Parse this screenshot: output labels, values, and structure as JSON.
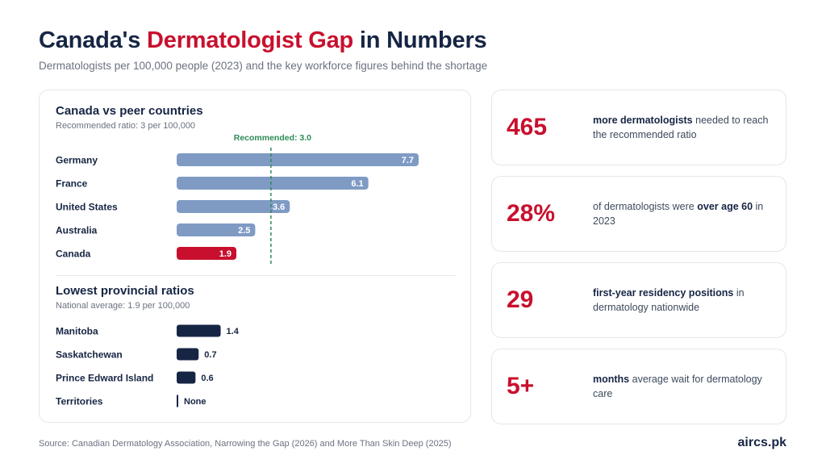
{
  "header": {
    "title_pre": "Canada's ",
    "title_accent": "Dermatologist Gap",
    "title_post": " in Numbers",
    "subtitle": "Dermatologists per 100,000 people (2023) and the key workforce figures behind the shortage"
  },
  "colors": {
    "accent": "#c8102e",
    "navy": "#162544",
    "peer_bar": "#7f9bc4",
    "recommended_line": "#2e8b57"
  },
  "chart_data": [
    {
      "type": "bar",
      "orientation": "horizontal",
      "title": "Canada vs peer countries",
      "subtitle": "Recommended ratio: 3 per 100,000",
      "categories": [
        "Germany",
        "France",
        "United States",
        "Australia",
        "Canada"
      ],
      "values": [
        7.7,
        6.1,
        3.6,
        2.5,
        1.9
      ],
      "labels": [
        "7.7",
        "6.1",
        "3.6",
        "2.5",
        "1.9"
      ],
      "highlight": "Canada",
      "reference_line": {
        "value": 3.0,
        "label": "Recommended: 3.0"
      },
      "xlim": [
        0,
        7.7
      ]
    },
    {
      "type": "bar",
      "orientation": "horizontal",
      "title": "Lowest provincial ratios",
      "subtitle": "National average: 1.9 per 100,000",
      "categories": [
        "Manitoba",
        "Saskatchewan",
        "Prince Edward Island",
        "Territories"
      ],
      "values": [
        1.4,
        0.7,
        0.6,
        0
      ],
      "labels": [
        "1.4",
        "0.7",
        "0.6",
        "None"
      ],
      "xlim": [
        0,
        7.7
      ]
    }
  ],
  "stats": [
    {
      "value": "465",
      "parts": [
        {
          "t": "more dermatologists",
          "b": true
        },
        {
          "t": " needed to reach the recommended ratio",
          "b": false
        }
      ]
    },
    {
      "value": "28%",
      "parts": [
        {
          "t": "of dermatologists were ",
          "b": false
        },
        {
          "t": "over age 60",
          "b": true
        },
        {
          "t": " in 2023",
          "b": false
        }
      ]
    },
    {
      "value": "29",
      "parts": [
        {
          "t": "first-year residency positions",
          "b": true
        },
        {
          "t": " in dermatology nationwide",
          "b": false
        }
      ]
    },
    {
      "value": "5+",
      "parts": [
        {
          "t": "months",
          "b": true
        },
        {
          "t": " average wait for dermatology care",
          "b": false
        }
      ]
    }
  ],
  "footer": {
    "source": "Source: Canadian Dermatology Association, Narrowing the Gap (2026) and More Than Skin Deep (2025)",
    "brand": "aircs.pk"
  }
}
